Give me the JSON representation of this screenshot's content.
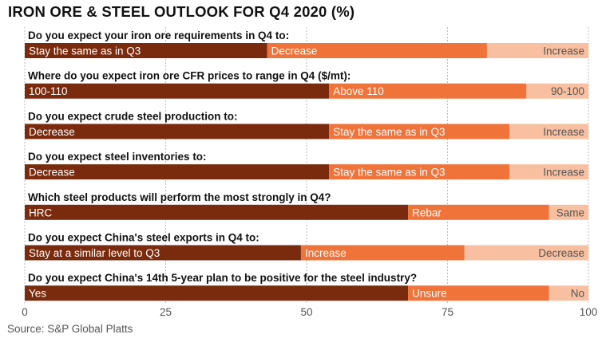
{
  "title": "IRON ORE & STEEL OUTLOOK FOR Q4 2020 (%)",
  "source": "Source: S&P Global Platts",
  "colors": {
    "segment1": "#7a2b0d",
    "segment2": "#f0733a",
    "segment3": "#f8c0a0",
    "label_light": "#ffffff",
    "label_dark": "#555555",
    "gridline": "#bbbbbb",
    "tick_text": "#555555"
  },
  "chart_data": {
    "type": "bar",
    "stacked": true,
    "orientation": "horizontal",
    "xlim": [
      0,
      100
    ],
    "x_ticks": [
      0,
      25,
      50,
      75,
      100
    ],
    "grid": true,
    "questions": [
      {
        "question": "Do you expect your iron ore requirements in Q4 to:",
        "segments": [
          {
            "label": "Stay the same as in Q3",
            "value": 43
          },
          {
            "label": "Decrease",
            "value": 39
          },
          {
            "label": "Increase",
            "value": 18
          }
        ]
      },
      {
        "question": "Where do you expect iron ore CFR prices to range in Q4 ($/mt):",
        "segments": [
          {
            "label": "100-110",
            "value": 54
          },
          {
            "label": "Above 110",
            "value": 35
          },
          {
            "label": "90-100",
            "value": 11
          }
        ]
      },
      {
        "question": "Do you expect crude steel production to:",
        "segments": [
          {
            "label": "Decrease",
            "value": 54
          },
          {
            "label": "Stay the same as in Q3",
            "value": 32
          },
          {
            "label": "Increase",
            "value": 14
          }
        ]
      },
      {
        "question": "Do you expect steel inventories to:",
        "segments": [
          {
            "label": "Decrease",
            "value": 54
          },
          {
            "label": "Stay the same as in Q3",
            "value": 32
          },
          {
            "label": "Increase",
            "value": 14
          }
        ]
      },
      {
        "question": "Which steel products will perform the most strongly in Q4?",
        "segments": [
          {
            "label": "HRC",
            "value": 68
          },
          {
            "label": "Rebar",
            "value": 25
          },
          {
            "label": "Same",
            "value": 7
          }
        ]
      },
      {
        "question": "Do you expect China's steel exports in Q4 to:",
        "segments": [
          {
            "label": "Stay at a similar level to Q3",
            "value": 49
          },
          {
            "label": "Increase",
            "value": 29
          },
          {
            "label": "Decrease",
            "value": 22
          }
        ]
      },
      {
        "question": "Do you expect China's 14th 5-year plan to be positive for the steel industry?",
        "segments": [
          {
            "label": "Yes",
            "value": 68
          },
          {
            "label": "Unsure",
            "value": 25
          },
          {
            "label": "No",
            "value": 7
          }
        ]
      }
    ]
  }
}
